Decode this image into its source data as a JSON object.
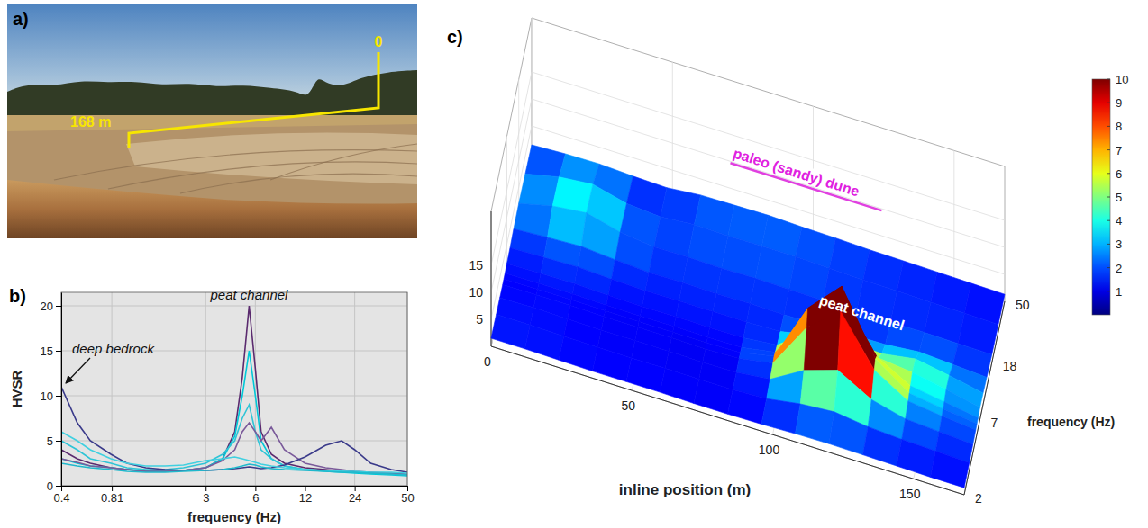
{
  "chart_data": [
    {
      "type": "image",
      "panel": "a)",
      "annotations": [
        {
          "text": "168 m"
        },
        {
          "text": "0"
        }
      ]
    },
    {
      "type": "line",
      "panel": "b)",
      "x_label": "frequency (Hz)",
      "y_label": "HVSR",
      "log": "x",
      "grid": true,
      "x": [
        0.4,
        0.5,
        0.6,
        0.8,
        1,
        1.3,
        1.7,
        2.2,
        3,
        3.8,
        4.5,
        5,
        5.5,
        6,
        6.5,
        7.5,
        9,
        12,
        16,
        20,
        24,
        30,
        40,
        50
      ],
      "xlim": [
        0.4,
        50
      ],
      "xticks": [
        0.4,
        0.81,
        3,
        6,
        12,
        24,
        50
      ],
      "ylim": [
        0,
        21.5
      ],
      "yticks": [
        0,
        5,
        10,
        15,
        20
      ],
      "series": [
        {
          "color": "#5a2a6e",
          "values": [
            4,
            3,
            2.5,
            2,
            1.8,
            1.6,
            1.6,
            1.7,
            2,
            3,
            6,
            12,
            20,
            13,
            6,
            3.5,
            2.5,
            2,
            1.8,
            1.6,
            1.5,
            1.4,
            1.3,
            1.2
          ]
        },
        {
          "color": "#00c8d8",
          "values": [
            3,
            2.5,
            2.2,
            2,
            1.8,
            1.7,
            1.6,
            1.7,
            2,
            3,
            5.5,
            10,
            15,
            10,
            5,
            3,
            2.2,
            1.8,
            1.6,
            1.5,
            1.4,
            1.3,
            1.2,
            1.1
          ]
        },
        {
          "color": "#2ec4d6",
          "values": [
            5,
            4,
            3,
            2.5,
            2,
            1.8,
            1.8,
            2,
            2.5,
            3.5,
            5,
            7.5,
            9,
            6,
            4,
            3,
            2.2,
            1.8,
            1.7,
            1.6,
            1.5,
            1.4,
            1.3,
            1.2
          ]
        },
        {
          "color": "#7a5a9a",
          "values": [
            3,
            2.6,
            2.2,
            2,
            1.8,
            1.6,
            1.6,
            1.7,
            2,
            2.8,
            4,
            6,
            7,
            6,
            5,
            6.5,
            4,
            2.5,
            2,
            1.8,
            1.6,
            1.5,
            1.4,
            1.3
          ]
        },
        {
          "color": "#3a3a8a",
          "values": [
            11,
            7,
            5,
            3.5,
            2.5,
            2,
            1.8,
            1.7,
            1.7,
            1.8,
            1.9,
            2,
            2.1,
            2,
            1.9,
            2,
            2.3,
            3.2,
            4.5,
            5,
            4,
            2.5,
            1.8,
            1.5
          ]
        },
        {
          "color": "#40d0e0",
          "values": [
            6,
            5,
            4,
            3,
            2.5,
            2.2,
            2.2,
            2.3,
            2.8,
            3,
            3.2,
            3,
            2.8,
            2.6,
            2.4,
            2.2,
            2,
            1.8,
            1.7,
            1.6,
            1.6,
            1.5,
            1.5,
            1.4
          ]
        },
        {
          "color": "#20b8cc",
          "values": [
            2.5,
            2.2,
            2,
            1.8,
            1.6,
            1.5,
            1.5,
            1.6,
            1.7,
            1.8,
            2,
            2.2,
            2.4,
            2.3,
            2.1,
            1.9,
            1.8,
            1.7,
            1.6,
            1.5,
            1.5,
            1.4,
            1.3,
            1.2
          ]
        }
      ],
      "annotations": [
        {
          "text": "peat channel"
        },
        {
          "text": "deep bedrock"
        }
      ]
    },
    {
      "type": "surface",
      "panel": "c)",
      "x_label": "inline position (m)",
      "y_label": "frequency (Hz)",
      "log": "y",
      "x": [
        0,
        12,
        24,
        36,
        48,
        60,
        72,
        84,
        96,
        108,
        120,
        132,
        144,
        156,
        168
      ],
      "y": [
        2,
        3,
        4,
        5,
        5.5,
        6,
        7,
        9,
        12,
        18,
        30,
        50
      ],
      "z": [
        [
          1.5,
          1.4,
          1.3,
          1.2,
          1.2,
          1.3,
          1.4,
          1.5,
          1.8,
          2.0,
          1.8,
          1.5
        ],
        [
          1.5,
          1.4,
          1.4,
          1.3,
          1.3,
          1.4,
          1.5,
          1.7,
          2.2,
          3.5,
          3.2,
          1.8
        ],
        [
          1.4,
          1.3,
          1.3,
          1.3,
          1.3,
          1.4,
          1.6,
          1.9,
          2.5,
          4.2,
          3.8,
          1.9
        ],
        [
          1.3,
          1.2,
          1.2,
          1.2,
          1.2,
          1.3,
          1.4,
          1.6,
          2.0,
          2.6,
          2.2,
          1.6
        ],
        [
          1.3,
          1.2,
          1.2,
          1.2,
          1.2,
          1.2,
          1.3,
          1.4,
          1.6,
          1.8,
          1.7,
          1.4
        ],
        [
          1.3,
          1.2,
          1.2,
          1.2,
          1.2,
          1.3,
          1.4,
          1.5,
          1.7,
          1.9,
          2.2,
          2.0
        ],
        [
          1.2,
          1.2,
          1.1,
          1.1,
          1.2,
          1.2,
          1.3,
          1.5,
          1.6,
          1.8,
          2.1,
          2.1
        ],
        [
          1.2,
          1.2,
          1.2,
          1.3,
          1.3,
          1.3,
          1.4,
          1.5,
          1.7,
          1.9,
          2.2,
          2.2
        ],
        [
          1.3,
          1.5,
          1.9,
          2.4,
          2.6,
          2.4,
          2.0,
          1.7,
          1.6,
          1.8,
          2.2,
          2.0
        ],
        [
          1.5,
          2.5,
          5.5,
          11.0,
          13.5,
          11.0,
          6.5,
          3.0,
          1.8,
          1.7,
          2.0,
          1.9
        ],
        [
          1.6,
          3.0,
          7.5,
          16.0,
          19.5,
          16.5,
          9.0,
          3.8,
          1.9,
          1.7,
          1.8,
          1.7
        ],
        [
          1.5,
          2.2,
          4.0,
          7.0,
          8.0,
          7.5,
          5.5,
          3.5,
          2.0,
          1.6,
          1.7,
          1.6
        ],
        [
          1.4,
          1.8,
          2.4,
          3.2,
          3.6,
          4.0,
          4.8,
          4.5,
          2.6,
          1.7,
          1.6,
          1.5
        ],
        [
          1.3,
          1.6,
          2.0,
          2.4,
          2.7,
          3.0,
          3.6,
          3.4,
          2.2,
          1.6,
          1.5,
          1.4
        ],
        [
          1.3,
          1.4,
          1.6,
          1.8,
          1.9,
          2.0,
          2.2,
          2.1,
          1.8,
          1.5,
          1.4,
          1.3
        ]
      ],
      "xlim": [
        0,
        168
      ],
      "xticks": [
        0,
        50,
        100,
        150
      ],
      "ylim": [
        2,
        50
      ],
      "yticks": [
        2,
        7,
        18,
        50
      ],
      "zlim": [
        0,
        25
      ],
      "zticks": [
        5,
        10,
        15
      ],
      "colorbar": {
        "range": [
          0,
          10
        ],
        "ticks": [
          1,
          2,
          3,
          4,
          5,
          6,
          7,
          8,
          9,
          10
        ]
      },
      "annotations": [
        {
          "text": "paleo (sandy) dune"
        },
        {
          "text": "peat channel"
        }
      ]
    }
  ]
}
